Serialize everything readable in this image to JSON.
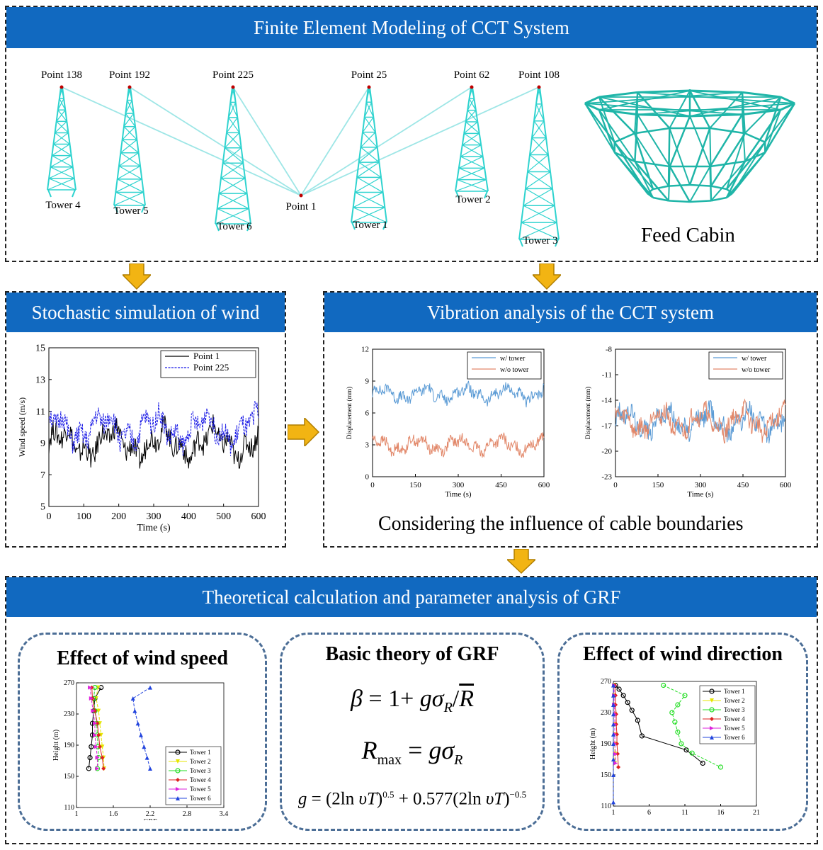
{
  "top": {
    "title": "Finite Element Modeling of CCT System",
    "points": [
      "Point 138",
      "Point 192",
      "Point 225",
      "Point 25",
      "Point 62",
      "Point 108"
    ],
    "towers": [
      "Tower 4",
      "Tower 5",
      "Tower 6",
      "Tower 1",
      "Tower 2",
      "Tower 3"
    ],
    "center_point": "Point 1",
    "cabin_caption": "Feed Cabin",
    "tower_color": "#2FD3CF",
    "cable_color": "#9EE6E6"
  },
  "wind": {
    "title": "Stochastic simulation of wind"
  },
  "vibration": {
    "title": "Vibration analysis of the CCT system",
    "caption": "Considering the influence of cable boundaries"
  },
  "grf": {
    "title": "Theoretical calculation and parameter analysis of GRF",
    "box1_title": "Effect of wind speed",
    "box2_title": "Basic theory of GRF",
    "box3_title": "Effect of wind direction"
  },
  "colors": {
    "header_blue": "#1169C0",
    "arrow_gold": "#F2B413",
    "box_border": "#4C6E96"
  },
  "chart_data": [
    {
      "type": "line",
      "xlabel": "Time (s)",
      "ylabel": "Wind speed (m/s)",
      "xlim": [
        0,
        600
      ],
      "ylim": [
        5,
        15
      ],
      "xticks": [
        0,
        100,
        200,
        300,
        400,
        500,
        600
      ],
      "yticks": [
        5,
        7,
        9,
        11,
        13,
        15
      ],
      "legend_position": "top-right",
      "series": [
        {
          "name": "Point 1",
          "color": "#000000",
          "style": "solid",
          "mean": 9.0,
          "amp": 1.3
        },
        {
          "name": "Point 225",
          "color": "#1A1AE6",
          "style": "dashed",
          "mean": 9.9,
          "amp": 1.3
        }
      ]
    },
    {
      "type": "line",
      "xlabel": "Time (s)",
      "ylabel": "Displacement (mm)",
      "xlim": [
        0,
        600
      ],
      "ylim": [
        0,
        12
      ],
      "xticks": [
        0,
        150,
        300,
        450,
        600
      ],
      "yticks": [
        0,
        3,
        6,
        9,
        12
      ],
      "legend_position": "top-right",
      "series": [
        {
          "name": "w/ tower",
          "color": "#5B9BD5",
          "mean": 7.8,
          "amp": 0.9
        },
        {
          "name": "w/o tower",
          "color": "#E2886A",
          "mean": 3.0,
          "amp": 0.9
        }
      ]
    },
    {
      "type": "line",
      "xlabel": "Time (s)",
      "ylabel": "Displacement (mm)",
      "xlim": [
        0,
        600
      ],
      "ylim": [
        -23,
        -8
      ],
      "xticks": [
        0,
        150,
        300,
        450,
        600
      ],
      "yticks": [
        -8,
        -11,
        -14,
        -17,
        -20,
        -23
      ],
      "legend_position": "top-right",
      "series": [
        {
          "name": "w/ tower",
          "color": "#5B9BD5",
          "mean": -16.5,
          "amp": 1.9
        },
        {
          "name": "w/o tower",
          "color": "#E2886A",
          "mean": -16.5,
          "amp": 1.9
        }
      ]
    },
    {
      "type": "line",
      "xlabel": "GRF",
      "ylabel": "Height (m)",
      "xlim": [
        1,
        3.4
      ],
      "ylim": [
        110,
        270
      ],
      "xticks": [
        1,
        1.6,
        2.2,
        2.8,
        3.4
      ],
      "yticks": [
        110,
        150,
        190,
        230,
        270
      ],
      "legend_position": "bottom-right",
      "heights": [
        264,
        250,
        234,
        218,
        203,
        188,
        174,
        160
      ],
      "series": [
        {
          "name": "Tower 1",
          "color": "#000000",
          "marker": "o",
          "x": [
            1.4,
            1.3,
            1.28,
            1.26,
            1.26,
            1.24,
            1.22,
            1.2
          ]
        },
        {
          "name": "Tower 2",
          "color": "#E6E600",
          "marker": "v",
          "x": [
            1.35,
            1.32,
            1.36,
            1.38,
            1.4,
            1.42,
            1.44,
            1.45
          ]
        },
        {
          "name": "Tower 3",
          "color": "#22DD22",
          "marker": "o",
          "x": [
            1.3,
            1.28,
            1.3,
            1.33,
            1.34,
            1.35,
            1.36,
            1.34
          ]
        },
        {
          "name": "Tower 4",
          "color": "#DD2222",
          "marker": "D",
          "x": [
            1.25,
            1.26,
            1.3,
            1.34,
            1.36,
            1.38,
            1.42,
            1.44
          ]
        },
        {
          "name": "Tower 5",
          "color": "#DD22DD",
          "marker": ">",
          "x": [
            1.22,
            1.24,
            1.27,
            1.3,
            1.3,
            1.32,
            1.34,
            1.34
          ]
        },
        {
          "name": "Tower 6",
          "color": "#2244DD",
          "marker": "^",
          "x": [
            2.2,
            1.92,
            1.95,
            2.0,
            2.05,
            2.1,
            2.15,
            2.2
          ]
        }
      ]
    },
    {
      "type": "line",
      "xlabel": "GRF",
      "ylabel": "Height (m)",
      "xlim": [
        1,
        21
      ],
      "ylim": [
        110,
        270
      ],
      "xticks": [
        1,
        6,
        11,
        16,
        21
      ],
      "yticks": [
        110,
        150,
        190,
        230,
        270
      ],
      "legend_position": "top-right",
      "series": [
        {
          "name": "Tower 1",
          "color": "#000000",
          "marker": "o",
          "x": [
            1.3,
            1.8,
            2.4,
            3.0,
            3.6,
            4.4,
            5.0,
            11.2,
            13.5
          ],
          "y": [
            265,
            260,
            252,
            243,
            233,
            220,
            200,
            182,
            165
          ]
        },
        {
          "name": "Tower 2",
          "color": "#E6E600",
          "marker": "v",
          "x": [
            1.1,
            1.1,
            1.1,
            1.2,
            1.2,
            1.2,
            1.2,
            1.2,
            1.2
          ],
          "y": [
            265,
            252,
            240,
            228,
            215,
            202,
            190,
            177,
            165
          ]
        },
        {
          "name": "Tower 3",
          "color": "#22DD22",
          "marker": "o",
          "x": [
            8.0,
            11.0,
            10.0,
            9.2,
            9.6,
            10.0,
            10.5,
            12.0,
            16.0
          ],
          "y": [
            265,
            252,
            240,
            230,
            218,
            205,
            190,
            178,
            160
          ]
        },
        {
          "name": "Tower 4",
          "color": "#DD2222",
          "marker": "D",
          "x": [
            1.2,
            1.3,
            1.3,
            1.4,
            1.4,
            1.5,
            1.5,
            1.6,
            1.7
          ],
          "y": [
            265,
            252,
            240,
            228,
            215,
            202,
            190,
            177,
            160
          ]
        },
        {
          "name": "Tower 5",
          "color": "#DD22DD",
          "marker": ">",
          "x": [
            1.1,
            1.1,
            1.1,
            1.2,
            1.2,
            1.2,
            1.2,
            1.3,
            1.3
          ],
          "y": [
            265,
            252,
            240,
            228,
            215,
            202,
            190,
            177,
            165
          ]
        },
        {
          "name": "Tower 6",
          "color": "#2244DD",
          "marker": "^",
          "x": [
            1.0,
            1.0,
            1.0,
            1.0,
            1.0,
            1.0,
            1.0,
            1.0,
            1.0,
            1.0
          ],
          "y": [
            265,
            252,
            240,
            228,
            215,
            202,
            190,
            170,
            150,
            115
          ]
        }
      ]
    }
  ]
}
